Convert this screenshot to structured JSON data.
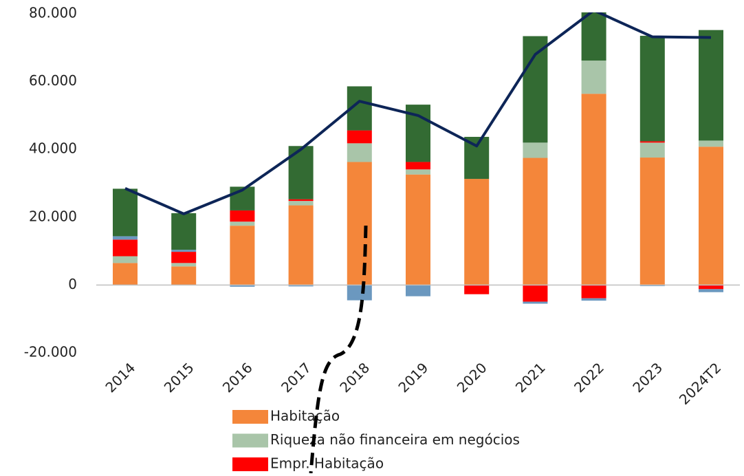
{
  "chart_data": {
    "type": "bar",
    "categories": [
      "2014",
      "2015",
      "2016",
      "2017",
      "2018",
      "2019",
      "2020",
      "2021",
      "2022",
      "2023",
      "2024T2"
    ],
    "stacked": true,
    "series": [
      {
        "name": "Habitação",
        "color": "#f4863a",
        "values": [
          6500,
          5500,
          17500,
          23500,
          36300,
          32600,
          31300,
          37500,
          56400,
          37600,
          40800
        ]
      },
      {
        "name": "Riqueza não financeira em negócios",
        "color": "#a9c5a9",
        "values": [
          2000,
          1000,
          1200,
          1300,
          5500,
          1500,
          0,
          4500,
          9800,
          4400,
          1800
        ]
      },
      {
        "name": "Empr. Habitação",
        "color": "#ff0000",
        "values": [
          4900,
          3300,
          3300,
          500,
          3800,
          2200,
          -2700,
          -4900,
          -3900,
          400,
          -1200
        ]
      },
      {
        "color": "#6b98bf",
        "values": [
          1000,
          600,
          -500,
          -400,
          -4500,
          -3300,
          0,
          -600,
          -700,
          -300,
          -900
        ]
      },
      {
        "color": "#336b33",
        "values": [
          14000,
          10800,
          7000,
          15700,
          13000,
          16900,
          12400,
          31400,
          14300,
          31100,
          32600
        ]
      },
      {
        "type": "line",
        "color": "#0d2557",
        "values": [
          28500,
          21000,
          28000,
          40000,
          54200,
          50000,
          41000,
          68000,
          81000,
          73200,
          73000
        ]
      }
    ],
    "ylim": [
      -20000,
      80000
    ],
    "yticks": [
      {
        "value": -20000,
        "label": "-20.000"
      },
      0,
      {
        "value": 20000,
        "label": "20.000"
      },
      {
        "value": 40000,
        "label": "40.000"
      },
      {
        "value": 60000,
        "label": "60.000"
      },
      {
        "value": 80000,
        "label": "80.000"
      }
    ]
  }
}
